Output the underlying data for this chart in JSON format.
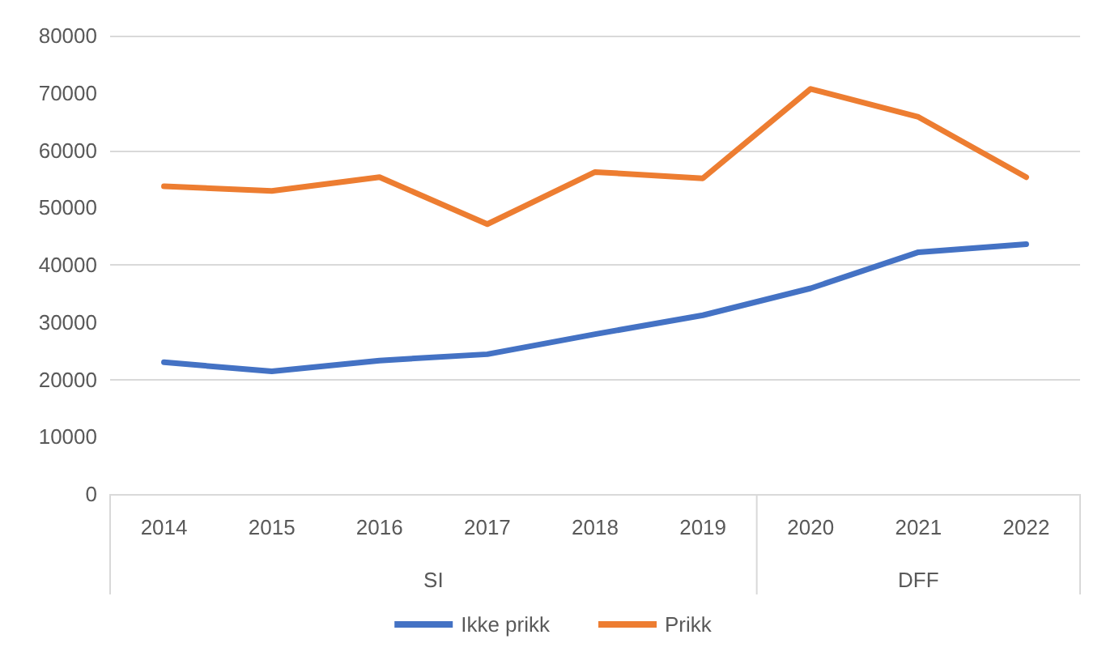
{
  "chart_data": {
    "type": "line",
    "categories": [
      "2014",
      "2015",
      "2016",
      "2017",
      "2018",
      "2019",
      "2020",
      "2021",
      "2022"
    ],
    "series": [
      {
        "name": "Ikke prikk",
        "color": "#4472c4",
        "values": [
          23000,
          21400,
          23300,
          24400,
          27900,
          31200,
          35900,
          42200,
          43600
        ]
      },
      {
        "name": "Prikk",
        "color": "#ed7d31",
        "values": [
          53700,
          52900,
          55300,
          47100,
          56200,
          55100,
          70700,
          65800,
          55300
        ]
      }
    ],
    "ylim": [
      0,
      80000
    ],
    "yticks": [
      0,
      10000,
      20000,
      30000,
      40000,
      50000,
      60000,
      70000,
      80000
    ],
    "annotations": [
      "SI",
      "DFF"
    ],
    "grid": "y",
    "legend": "bottom",
    "marker": "none",
    "line_style": "solid"
  }
}
